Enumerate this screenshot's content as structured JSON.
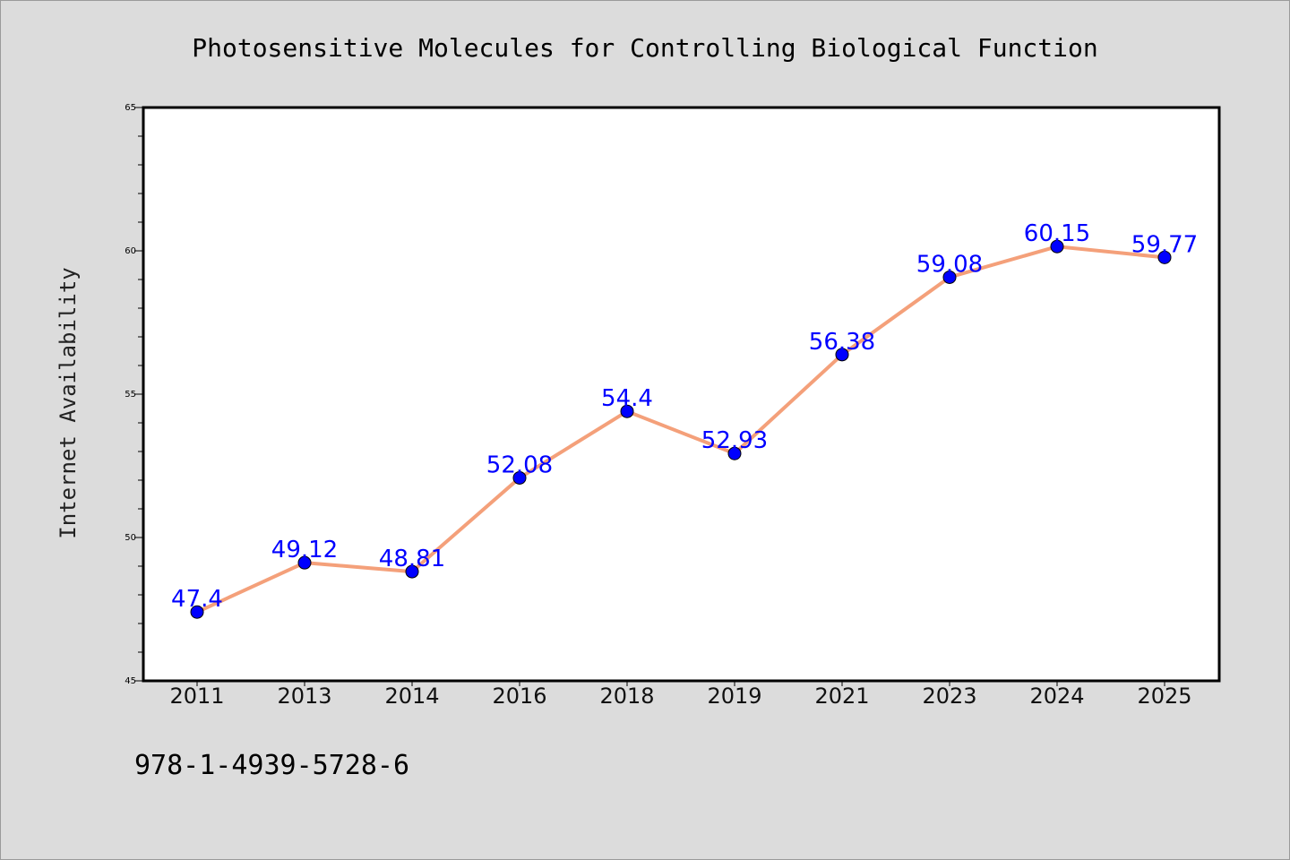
{
  "chart_data": {
    "type": "line",
    "title": "Photosensitive Molecules for Controlling Biological Function",
    "xlabel": "",
    "ylabel": "Internet Availability",
    "categories": [
      "2011",
      "2013",
      "2014",
      "2016",
      "2018",
      "2019",
      "2021",
      "2023",
      "2024",
      "2025"
    ],
    "values": [
      47.4,
      49.12,
      48.81,
      52.08,
      54.4,
      52.93,
      56.38,
      59.08,
      60.15,
      59.77
    ],
    "data_labels": [
      "47.4",
      "49.12",
      "48.81",
      "52.08",
      "54.4",
      "52.93",
      "56.38",
      "59.08",
      "60.15",
      "59.77"
    ],
    "ylim": [
      45,
      65
    ],
    "yticks": [
      "45",
      "50",
      "55",
      "60",
      "65"
    ],
    "grid": false,
    "legend": "none",
    "line_color": "#f4a07a",
    "marker_color": "#0000ff",
    "label_color": "#0000ff"
  },
  "footer": {
    "isbn": "978-1-4939-5728-6"
  },
  "colors": {
    "background": "#dcdcdc",
    "plot_background": "#ffffff"
  }
}
